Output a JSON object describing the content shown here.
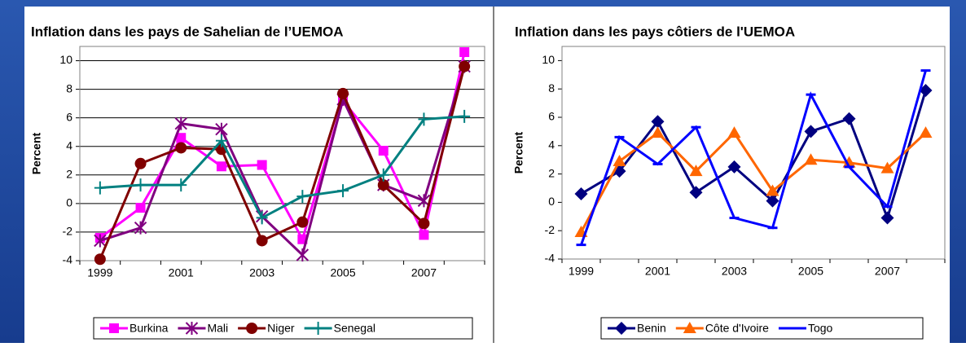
{
  "chart_data": [
    {
      "type": "line",
      "title": "Inflation dans les pays de Sahelian de l’UEMOA",
      "y_label": "Percent",
      "categories": [
        "1999",
        null,
        "2001",
        null,
        "2003",
        null,
        "2005",
        null,
        "2007",
        null
      ],
      "ylim": [
        -4,
        11
      ],
      "yticks": [
        -4,
        -2,
        0,
        2,
        4,
        6,
        8,
        10
      ],
      "grid": true,
      "legend": "bottom",
      "series": [
        {
          "name": "Burkina",
          "color": "#ff00ff",
          "marker": "square",
          "values": [
            -2.4,
            -0.3,
            4.6,
            2.6,
            2.7,
            -2.5,
            7.2,
            3.7,
            -2.2,
            10.6
          ]
        },
        {
          "name": "Mali",
          "color": "#800080",
          "marker": "star",
          "values": [
            -2.6,
            -1.7,
            5.6,
            5.2,
            -0.9,
            -3.6,
            7.3,
            1.3,
            0.2,
            9.6
          ]
        },
        {
          "name": "Niger",
          "color": "#800000",
          "marker": "circle",
          "values": [
            -3.9,
            2.8,
            3.9,
            3.8,
            -2.6,
            -1.3,
            7.7,
            1.3,
            -1.4,
            9.6
          ]
        },
        {
          "name": "Senegal",
          "color": "#008080",
          "marker": "plus",
          "values": [
            1.1,
            1.3,
            1.3,
            4.4,
            -1.0,
            0.5,
            0.9,
            2.0,
            5.9,
            6.1
          ]
        }
      ]
    },
    {
      "type": "line",
      "title": "Inflation dans les pays côtiers de l'UEMOA",
      "y_label": "Percent",
      "categories": [
        "1999",
        null,
        "2001",
        null,
        "2003",
        null,
        "2005",
        null,
        "2007",
        null
      ],
      "ylim": [
        -4,
        11
      ],
      "yticks": [
        -4,
        -2,
        0,
        2,
        4,
        6,
        8,
        10
      ],
      "grid": false,
      "legend": "bottom",
      "series": [
        {
          "name": "Benin",
          "color": "#000080",
          "marker": "diamond",
          "values": [
            0.6,
            2.2,
            5.7,
            0.7,
            2.5,
            0.1,
            5.0,
            5.9,
            -1.1,
            7.9
          ]
        },
        {
          "name": "Côte d'Ivoire",
          "color": "#ff6600",
          "marker": "triangle",
          "values": [
            -2.1,
            2.9,
            4.9,
            2.2,
            4.9,
            0.8,
            3.0,
            2.8,
            2.4,
            4.9
          ]
        },
        {
          "name": "Togo",
          "color": "#0000ff",
          "marker": "dash",
          "values": [
            -3.0,
            4.6,
            2.7,
            5.3,
            -1.1,
            -1.8,
            7.6,
            2.5,
            -0.3,
            9.3
          ]
        }
      ]
    }
  ]
}
